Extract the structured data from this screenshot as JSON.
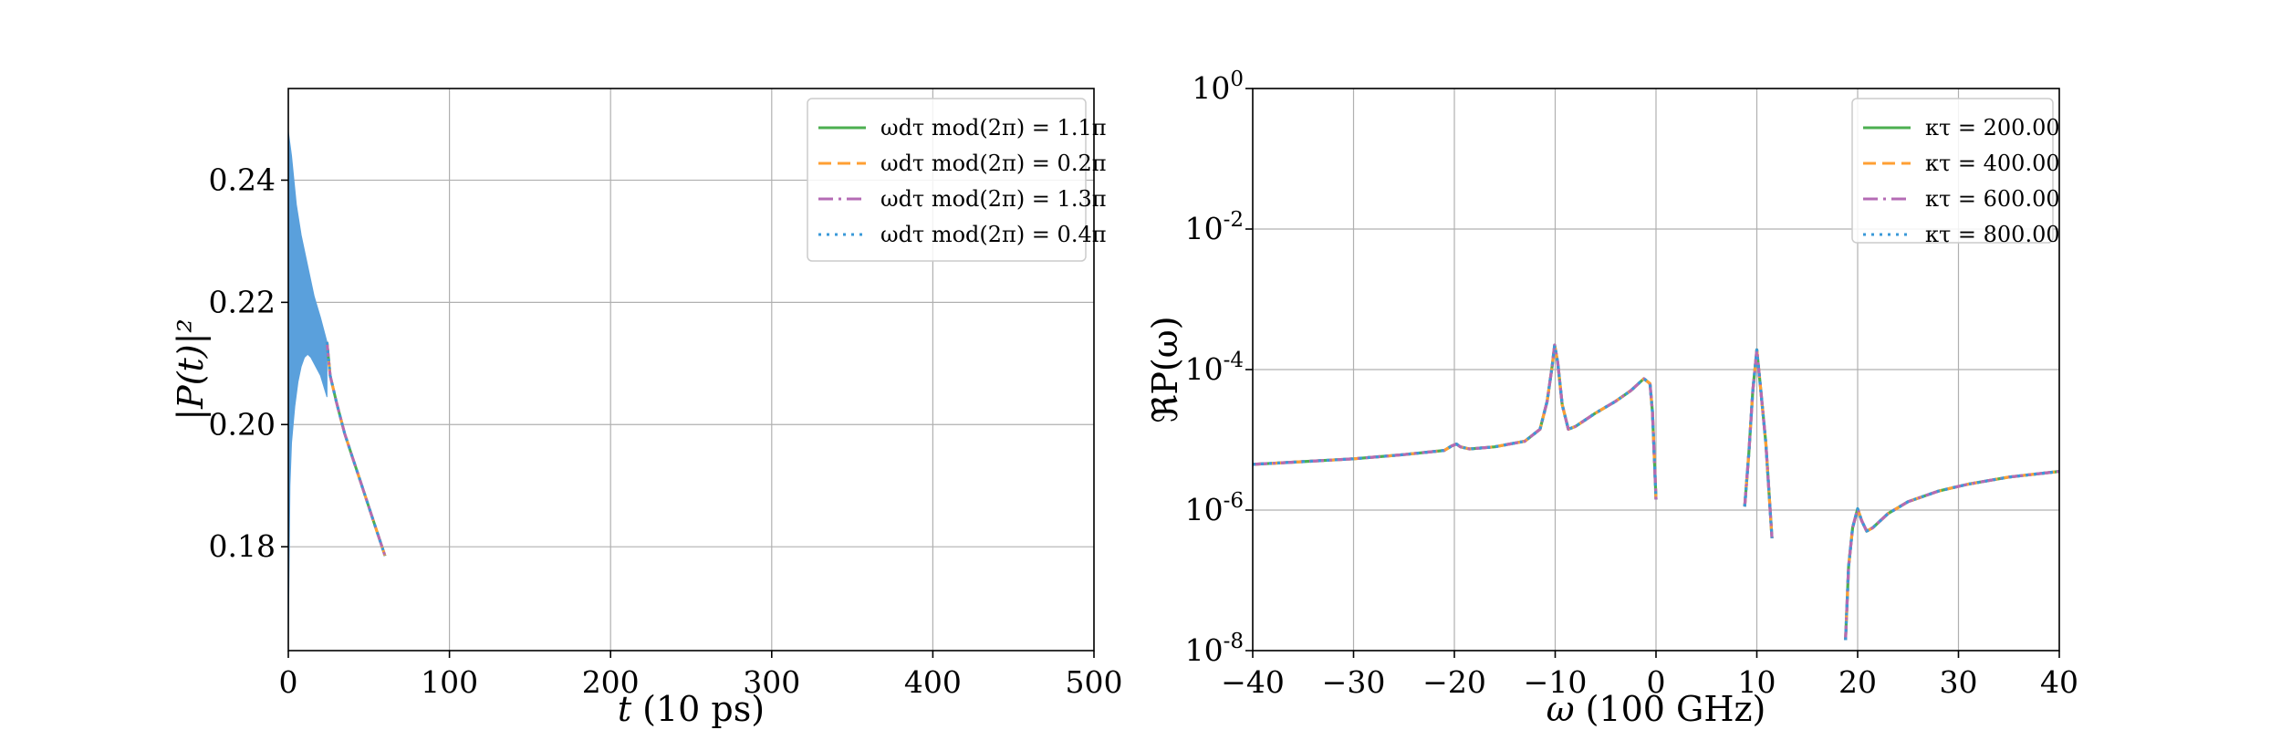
{
  "colors": {
    "green": "#4caf50",
    "orange": "#ff9f33",
    "purple": "#b46bb4",
    "blue": "#3a9ad9",
    "fill": "#5aa0dc",
    "grid": "#b0b0b0"
  },
  "chart_data": [
    {
      "type": "line",
      "xlabel_var": "t",
      "xlabel_unit": "(10 ps)",
      "ylabel": "|P(t)|²",
      "xlim": [
        0,
        500
      ],
      "ylim": [
        0.163,
        0.255
      ],
      "xticks": [
        0,
        100,
        200,
        300,
        400,
        500
      ],
      "xtick_labels": [
        "0",
        "100",
        "200",
        "300",
        "400",
        "500"
      ],
      "yticks": [
        0.18,
        0.2,
        0.22,
        0.24
      ],
      "ytick_labels": [
        "0.18",
        "0.20",
        "0.22",
        "0.24"
      ],
      "grid": true,
      "legend_position": "top-right",
      "legend": [
        {
          "label": "ωdτ mod(2π) = 1.1π",
          "style": "solid",
          "color": "green"
        },
        {
          "label": "ωdτ mod(2π) = 0.2π",
          "style": "dashed",
          "color": "orange"
        },
        {
          "label": "ωdτ mod(2π) = 1.3π",
          "style": "dashdot",
          "color": "purple"
        },
        {
          "label": "ωdτ mod(2π) = 0.4π",
          "style": "dotted",
          "color": "blue"
        }
      ],
      "oscillation_upper": [
        [
          0,
          0.248
        ],
        [
          2,
          0.244
        ],
        [
          5,
          0.236
        ],
        [
          8,
          0.231
        ],
        [
          12,
          0.226
        ],
        [
          16,
          0.221
        ],
        [
          20,
          0.2175
        ],
        [
          24,
          0.2135
        ]
      ],
      "oscillation_lower": [
        [
          0,
          0.165
        ],
        [
          1,
          0.19
        ],
        [
          2,
          0.197
        ],
        [
          4,
          0.203
        ],
        [
          6,
          0.207
        ],
        [
          8,
          0.2095
        ],
        [
          10,
          0.211
        ],
        [
          12,
          0.2115
        ],
        [
          14,
          0.211
        ],
        [
          17,
          0.2095
        ],
        [
          20,
          0.208
        ],
        [
          24,
          0.2045
        ]
      ],
      "decay_tail": [
        [
          24,
          0.2135
        ],
        [
          26,
          0.208
        ],
        [
          30,
          0.2035
        ],
        [
          35,
          0.1985
        ],
        [
          40,
          0.1945
        ],
        [
          45,
          0.1905
        ],
        [
          50,
          0.1865
        ],
        [
          55,
          0.1825
        ],
        [
          60,
          0.1785
        ]
      ]
    },
    {
      "type": "line",
      "yscale": "log",
      "xlabel_var": "ω",
      "xlabel_unit": "(100 GHz)",
      "ylabel": "ℜP(ω)",
      "xlim": [
        -40,
        40
      ],
      "ylim_exp": [
        -8,
        0
      ],
      "xticks": [
        -40,
        -30,
        -20,
        -10,
        0,
        10,
        20,
        30,
        40
      ],
      "xtick_labels": [
        "−40",
        "−30",
        "−20",
        "−10",
        "0",
        "10",
        "20",
        "30",
        "40"
      ],
      "ytick_exps": [
        -8,
        -6,
        -4,
        -2,
        0
      ],
      "ytick_mantissa": [
        "10",
        "10",
        "10",
        "10",
        "10"
      ],
      "ytick_exp_labels": [
        "-8",
        "-6",
        "-4",
        "-2",
        "0"
      ],
      "grid": true,
      "legend_position": "top-right",
      "legend": [
        {
          "label": "κτ = 200.00",
          "style": "solid",
          "color": "green"
        },
        {
          "label": "κτ = 400.00",
          "style": "dashed",
          "color": "orange"
        },
        {
          "label": "κτ = 600.00",
          "style": "dashdot",
          "color": "purple"
        },
        {
          "label": "κτ = 800.00",
          "style": "dotted",
          "color": "blue"
        }
      ],
      "segments": [
        [
          [
            -40,
            -5.35
          ],
          [
            -35,
            -5.31
          ],
          [
            -30,
            -5.27
          ],
          [
            -25,
            -5.21
          ],
          [
            -21,
            -5.15
          ],
          [
            -20.3,
            -5.09
          ],
          [
            -19.8,
            -5.06
          ],
          [
            -19.4,
            -5.1
          ],
          [
            -18.5,
            -5.13
          ],
          [
            -16,
            -5.1
          ],
          [
            -13,
            -5.02
          ],
          [
            -11.5,
            -4.85
          ],
          [
            -10.8,
            -4.45
          ],
          [
            -10.3,
            -3.95
          ],
          [
            -10.05,
            -3.65
          ],
          [
            -9.75,
            -3.9
          ],
          [
            -9.3,
            -4.5
          ],
          [
            -8.7,
            -4.85
          ],
          [
            -8,
            -4.81
          ],
          [
            -6,
            -4.62
          ],
          [
            -4,
            -4.45
          ],
          [
            -2.5,
            -4.3
          ],
          [
            -1.2,
            -4.13
          ],
          [
            -0.6,
            -4.2
          ],
          [
            -0.35,
            -4.6
          ],
          [
            -0.15,
            -5.3
          ],
          [
            0,
            -5.85
          ]
        ],
        [
          [
            8.8,
            -5.95
          ],
          [
            9.2,
            -5.2
          ],
          [
            9.6,
            -4.3
          ],
          [
            10,
            -3.72
          ],
          [
            10.4,
            -4.3
          ],
          [
            10.9,
            -5.05
          ],
          [
            11.5,
            -6.4
          ]
        ],
        [
          [
            18.8,
            -7.85
          ],
          [
            19.1,
            -6.8
          ],
          [
            19.5,
            -6.25
          ],
          [
            20,
            -5.98
          ],
          [
            20.4,
            -6.15
          ],
          [
            20.9,
            -6.3
          ],
          [
            21.5,
            -6.25
          ],
          [
            23,
            -6.05
          ],
          [
            25,
            -5.88
          ],
          [
            28,
            -5.73
          ],
          [
            31,
            -5.63
          ],
          [
            35,
            -5.53
          ],
          [
            40,
            -5.45
          ]
        ]
      ]
    }
  ]
}
